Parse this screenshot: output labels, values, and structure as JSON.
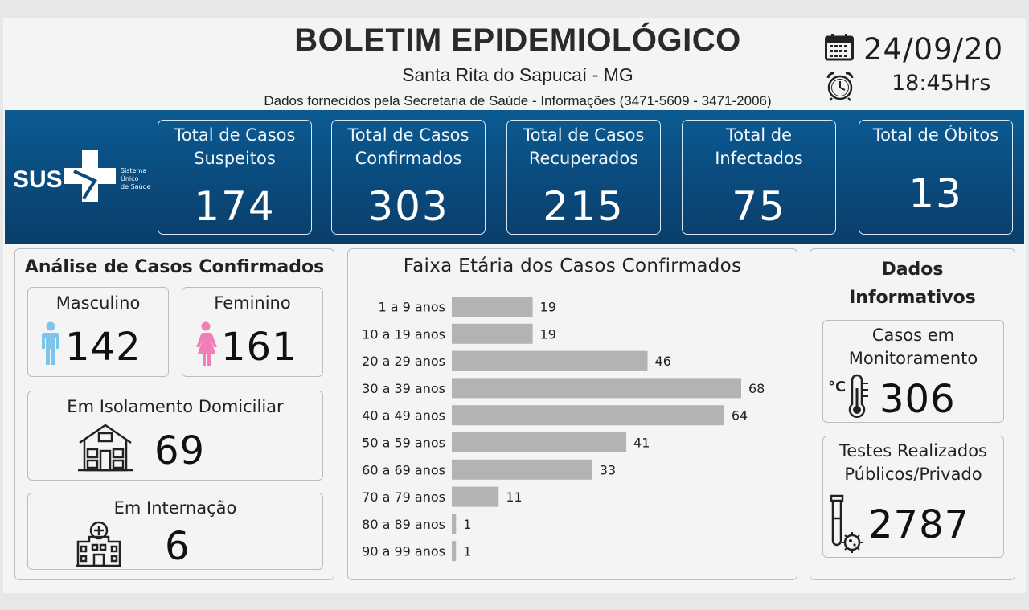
{
  "header": {
    "title": "BOLETIM EPIDEMIOLÓGICO",
    "city": "Santa Rita do Sapucaí - MG",
    "sources": "Dados fornecidos pela Secretaria de Saúde - Informações (3471-5609 - 3471-2006)",
    "date": "24/09/20",
    "time": "18:45Hrs",
    "calendar_icon": "calendar-icon",
    "clock_icon": "alarm-clock-icon"
  },
  "logo": {
    "acronym": "SUS",
    "name_line1": "Sistema",
    "name_line2": "Único",
    "name_line3": "de Saúde"
  },
  "stats": [
    {
      "label_line1": "Total de Casos",
      "label_line2": "Suspeitos",
      "value": "174"
    },
    {
      "label_line1": "Total de Casos",
      "label_line2": "Confirmados",
      "value": "303"
    },
    {
      "label_line1": "Total de Casos",
      "label_line2": "Recuperados",
      "value": "215"
    },
    {
      "label_line1": "Total de",
      "label_line2": "Infectados",
      "value": "75"
    },
    {
      "label_line1": "Total de Óbitos",
      "label_line2": "",
      "value": "13"
    }
  ],
  "analysis": {
    "title": "Análise de Casos Confirmados",
    "male_label": "Masculino",
    "male_value": "142",
    "female_label": "Feminino",
    "female_value": "161",
    "isolation_label": "Em Isolamento Domiciliar",
    "isolation_value": "69",
    "hospital_label": "Em Internação",
    "hospital_value": "6",
    "colors": {
      "male": "#7ec3ea",
      "female": "#f07fb7"
    }
  },
  "chart_data": {
    "type": "bar",
    "orientation": "horizontal",
    "title": "Faixa Etária dos Casos Confirmados",
    "categories": [
      "1 a 9 anos",
      "10 a 19 anos",
      "20 a 29 anos",
      "30 a 39 anos",
      "40 a 49 anos",
      "50 a 59 anos",
      "60 a 69 anos",
      "70 a 79 anos",
      "80 a 89 anos",
      "90 a 99 anos"
    ],
    "values": [
      19,
      19,
      46,
      68,
      64,
      41,
      33,
      11,
      1,
      1
    ],
    "xlim": [
      0,
      68
    ],
    "grid": false,
    "legend": "none",
    "bar_color": "#b3b3b3"
  },
  "info": {
    "title_line1": "Dados",
    "title_line2": "Informativos",
    "monitor_label_line1": "Casos em",
    "monitor_label_line2": "Monitoramento",
    "monitor_value": "306",
    "tests_label_line1": "Testes Realizados",
    "tests_label_line2": "Públicos/Privado",
    "tests_value": "2787"
  }
}
